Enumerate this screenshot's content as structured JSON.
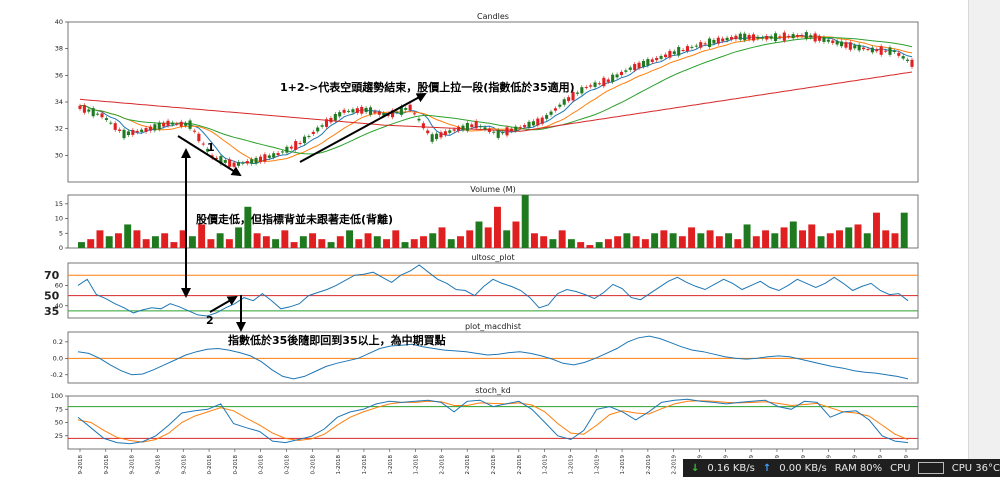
{
  "colors": {
    "up": "#e02020",
    "down": "#1f7a1f",
    "ma_short": "#1f77b4",
    "ma_mid": "#ff7f0e",
    "ma_long": "#2ca02c",
    "ma_200": "#d62728",
    "line_orange": "#ff7f0e",
    "line_green": "#2ca02c",
    "line_red": "#d62728",
    "annotation": "#000000"
  },
  "chart_data": [
    {
      "type": "candlestick",
      "title": "Candles",
      "yticks": [
        "40",
        "38",
        "36",
        "34",
        "32",
        "30"
      ],
      "ylim": [
        28,
        40
      ],
      "series": [
        {
          "name": "close",
          "x": [
            0,
            5,
            10,
            15,
            20,
            25,
            30,
            35,
            40,
            45,
            50,
            55,
            60,
            65,
            70,
            75,
            80,
            85,
            90,
            95,
            100,
            105,
            110,
            115,
            120,
            125,
            130,
            135,
            140,
            145,
            150,
            155,
            160,
            165,
            170,
            175,
            180,
            185,
            189
          ],
          "values": [
            33.6,
            33.0,
            31.6,
            31.9,
            32.4,
            32.3,
            29.9,
            29.3,
            29.6,
            30.1,
            30.9,
            32.2,
            33.3,
            33.4,
            33.0,
            33.6,
            31.3,
            31.9,
            32.3,
            31.6,
            32.1,
            32.6,
            34.0,
            35.1,
            35.6,
            36.5,
            37.1,
            37.7,
            38.2,
            38.6,
            38.9,
            38.8,
            38.9,
            39.0,
            38.6,
            38.2,
            37.9,
            37.8,
            36.9
          ]
        }
      ],
      "annotations": [
        "1+2->代表空頭趨勢結束，股價上拉一段(指數低於35適用)",
        "1",
        "股價走低，但指標背並未跟著走低(背離)",
        "2",
        "指數低於35後隨即回到35以上，為中期買點"
      ]
    },
    {
      "type": "bar",
      "title": "Volume (M)",
      "yticks": [
        "15",
        "10",
        "5",
        "0"
      ],
      "ylim": [
        0,
        18
      ],
      "values": [
        2,
        3,
        6,
        4,
        5,
        8,
        6,
        3,
        4,
        5,
        2,
        6,
        4,
        8,
        3,
        5,
        3,
        7,
        14,
        5,
        4,
        3,
        6,
        2,
        4,
        5,
        3,
        2,
        4,
        6,
        3,
        5,
        4,
        3,
        6,
        2,
        3,
        4,
        5,
        7,
        3,
        4,
        6,
        9,
        7,
        14,
        6,
        9,
        18,
        5,
        4,
        3,
        6,
        3,
        2,
        1,
        2,
        3,
        4,
        5,
        4,
        3,
        5,
        6,
        5,
        4,
        7,
        5,
        6,
        4,
        5,
        3,
        8,
        4,
        6,
        5,
        7,
        9,
        6,
        8,
        4,
        5,
        6,
        7,
        8,
        5,
        12,
        6,
        5,
        12
      ],
      "up": [
        0,
        1,
        1,
        0,
        1,
        0,
        1,
        1,
        0,
        1,
        1,
        1,
        0,
        1,
        1,
        0,
        1,
        0,
        0,
        1,
        1,
        0,
        1,
        1,
        0,
        1,
        1,
        0,
        1,
        0,
        1,
        1,
        0,
        1,
        1,
        0,
        1,
        1,
        0,
        1,
        0,
        1,
        1,
        0,
        1,
        1,
        0,
        1,
        0,
        1,
        1,
        0,
        1,
        0,
        1,
        1,
        0,
        1,
        1,
        0,
        1,
        1,
        0,
        1,
        0,
        1,
        1,
        0,
        1,
        1,
        0,
        1,
        0,
        1,
        1,
        0,
        1,
        0,
        1,
        1,
        0,
        1,
        1,
        0,
        1,
        0,
        1,
        1,
        1,
        0
      ]
    },
    {
      "type": "line",
      "title": "ultosc_plot",
      "ylim": [
        28,
        82
      ],
      "levels": [
        "70",
        "50",
        "35"
      ],
      "level_values": [
        70,
        50,
        35
      ],
      "yticks": [
        "60",
        "40"
      ],
      "series": [
        {
          "name": "ultosc",
          "values": [
            60,
            66,
            51,
            47,
            42,
            38,
            33,
            36,
            38,
            37,
            42,
            39,
            35,
            31,
            30,
            33,
            38,
            42,
            48,
            45,
            52,
            45,
            37,
            39,
            42,
            50,
            53,
            56,
            60,
            65,
            70,
            71,
            73,
            68,
            63,
            70,
            74,
            80,
            73,
            66,
            62,
            56,
            55,
            50,
            59,
            66,
            62,
            59,
            55,
            48,
            38,
            41,
            52,
            56,
            54,
            51,
            47,
            53,
            61,
            57,
            48,
            46,
            52,
            58,
            64,
            68,
            63,
            59,
            56,
            61,
            66,
            62,
            56,
            60,
            64,
            58,
            55,
            60,
            66,
            62,
            58,
            62,
            68,
            62,
            55,
            59,
            62,
            55,
            51,
            52,
            45
          ]
        }
      ]
    },
    {
      "type": "line",
      "title": "plot_macdhist",
      "yticks": [
        "0.2",
        "0.0",
        "-0.2"
      ],
      "ylim": [
        -0.3,
        0.32
      ],
      "series": [
        {
          "name": "macdhist",
          "values": [
            0.08,
            0.06,
            0.0,
            -0.08,
            -0.15,
            -0.2,
            -0.19,
            -0.14,
            -0.08,
            -0.02,
            0.04,
            0.08,
            0.11,
            0.12,
            0.1,
            0.07,
            0.03,
            -0.04,
            -0.14,
            -0.22,
            -0.25,
            -0.22,
            -0.16,
            -0.1,
            -0.06,
            -0.03,
            0.0,
            0.06,
            0.12,
            0.15,
            0.16,
            0.17,
            0.14,
            0.12,
            0.1,
            0.09,
            0.08,
            0.06,
            0.04,
            0.05,
            0.07,
            0.08,
            0.06,
            0.03,
            -0.01,
            -0.06,
            -0.08,
            -0.05,
            0.0,
            0.06,
            0.12,
            0.2,
            0.25,
            0.27,
            0.24,
            0.19,
            0.14,
            0.1,
            0.08,
            0.05,
            0.02,
            0.0,
            -0.01,
            0.0,
            0.02,
            0.03,
            0.02,
            -0.01,
            -0.04,
            -0.07,
            -0.1,
            -0.12,
            -0.15,
            -0.17,
            -0.18,
            -0.2,
            -0.22,
            -0.25
          ]
        }
      ]
    },
    {
      "type": "line",
      "title": "stoch_kd",
      "yticks": [
        "100",
        "75",
        "50",
        "25"
      ],
      "ylim": [
        0,
        100
      ],
      "levels": [
        80,
        20
      ],
      "series": [
        {
          "name": "K",
          "values": [
            60,
            40,
            20,
            12,
            10,
            14,
            25,
            45,
            68,
            72,
            75,
            85,
            48,
            40,
            33,
            15,
            12,
            18,
            24,
            38,
            60,
            70,
            75,
            85,
            90,
            88,
            90,
            92,
            88,
            70,
            90,
            92,
            80,
            85,
            90,
            75,
            50,
            25,
            18,
            35,
            75,
            80,
            70,
            55,
            70,
            88,
            92,
            94,
            90,
            88,
            85,
            88,
            90,
            92,
            80,
            75,
            90,
            88,
            60,
            70,
            72,
            55,
            25,
            15,
            12
          ]
        },
        {
          "name": "D",
          "values": [
            55,
            50,
            35,
            22,
            16,
            13,
            18,
            30,
            50,
            62,
            70,
            78,
            72,
            58,
            45,
            30,
            20,
            16,
            19,
            28,
            45,
            60,
            70,
            78,
            85,
            88,
            88,
            90,
            89,
            82,
            82,
            87,
            86,
            85,
            87,
            83,
            70,
            48,
            30,
            28,
            45,
            65,
            72,
            68,
            66,
            76,
            85,
            90,
            91,
            90,
            88,
            87,
            88,
            89,
            86,
            82,
            84,
            86,
            78,
            70,
            68,
            62,
            45,
            28,
            18
          ]
        }
      ]
    }
  ],
  "x_axis": {
    "tick_labels": [
      "9-2018",
      "9-2018",
      "9-2018",
      "9-2018",
      "9-2018",
      "0-2018",
      "0-2018",
      "0-2018",
      "0-2018",
      "0-2018",
      "1-2018",
      "1-2018",
      "1-2018",
      "1-2018",
      "2-2018",
      "2-2018",
      "2-2018",
      "2-2018",
      "1-2019",
      "1-2019",
      "1-2019",
      "1-2019",
      "2-2019",
      "2-2019",
      "2-2019",
      "2-2019",
      "3-2019",
      "3-2019",
      "3-2019",
      "3-2019",
      "3-2019",
      "3-2019",
      "4-2019"
    ]
  },
  "taskbar": {
    "down_icon": "arrow-down-icon",
    "down_speed": "0.16 KB/s",
    "up_icon": "arrow-up-icon",
    "up_speed": "0.00 KB/s",
    "ram": "RAM 80%",
    "cpu_label": "CPU",
    "cpu_temp": "CPU 36°C"
  }
}
